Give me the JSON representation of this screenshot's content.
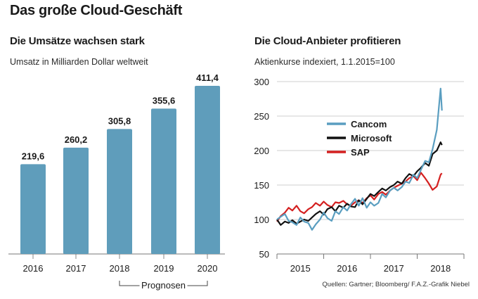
{
  "title": "Das große Cloud-Geschäft",
  "source": "Quellen: Gartner; Bloomberg/ F.A.Z.-Grafik Niebel",
  "chart_data": [
    {
      "type": "bar",
      "title": "Die Umsätze wachsen stark",
      "subtitle": "Umsatz in Milliarden Dollar weltweit",
      "categories": [
        "2016",
        "2017",
        "2018",
        "2019",
        "2020"
      ],
      "values": [
        219.6,
        260.2,
        305.8,
        355.6,
        411.4
      ],
      "value_labels": [
        "219,6",
        "260,2",
        "305,8",
        "355,6",
        "411,4"
      ],
      "forecast_label": "Prognosen",
      "forecast_categories": [
        "2018",
        "2019",
        "2020"
      ],
      "ylim": [
        0,
        411.4
      ],
      "bar_color": "#5f9dbb",
      "grid": false
    },
    {
      "type": "line",
      "title": "Die Cloud-Anbieter profitieren",
      "subtitle": "Aktienkurse indexiert, 1.1.2015=100",
      "x_ticks": [
        "2015",
        "2016",
        "2017",
        "2018"
      ],
      "xlim": [
        2014.5,
        2018.5
      ],
      "ylim": [
        50,
        300
      ],
      "y_ticks": [
        "300",
        "250",
        "200",
        "150",
        "100",
        "50"
      ],
      "y_tick_values": [
        300,
        250,
        200,
        150,
        100,
        50
      ],
      "grid": "horizontal",
      "legend_position": "top-left",
      "series": [
        {
          "name": "Cancom",
          "color": "#5a9ec0",
          "x": [
            2014.5,
            2014.58,
            2014.67,
            2014.75,
            2014.83,
            2014.92,
            2015.0,
            2015.08,
            2015.17,
            2015.25,
            2015.33,
            2015.42,
            2015.5,
            2015.58,
            2015.67,
            2015.75,
            2015.83,
            2015.92,
            2016.0,
            2016.08,
            2016.17,
            2016.25,
            2016.33,
            2016.42,
            2016.5,
            2016.58,
            2016.67,
            2016.75,
            2016.83,
            2016.92,
            2017.0,
            2017.08,
            2017.17,
            2017.25,
            2017.33,
            2017.42,
            2017.5,
            2017.58,
            2017.67,
            2017.75,
            2017.83,
            2017.92,
            2018.0,
            2018.03
          ],
          "values": [
            100,
            104,
            108,
            98,
            96,
            92,
            103,
            97,
            95,
            85,
            93,
            100,
            110,
            102,
            98,
            112,
            108,
            118,
            113,
            122,
            130,
            120,
            131,
            117,
            125,
            120,
            124,
            137,
            132,
            142,
            146,
            142,
            147,
            155,
            153,
            165,
            160,
            172,
            185,
            183,
            202,
            230,
            290,
            258
          ]
        },
        {
          "name": "Microsoft",
          "color": "#111111",
          "x": [
            2014.5,
            2014.58,
            2014.67,
            2014.75,
            2014.83,
            2014.92,
            2015.0,
            2015.08,
            2015.17,
            2015.25,
            2015.33,
            2015.42,
            2015.5,
            2015.58,
            2015.67,
            2015.75,
            2015.83,
            2015.92,
            2016.0,
            2016.08,
            2016.17,
            2016.25,
            2016.33,
            2016.42,
            2016.5,
            2016.58,
            2016.67,
            2016.75,
            2016.83,
            2016.92,
            2017.0,
            2017.08,
            2017.17,
            2017.25,
            2017.33,
            2017.42,
            2017.5,
            2017.58,
            2017.67,
            2017.75,
            2017.83,
            2017.92,
            2018.0,
            2018.03
          ],
          "values": [
            100,
            92,
            97,
            95,
            99,
            94,
            97,
            100,
            98,
            103,
            108,
            112,
            107,
            115,
            118,
            112,
            120,
            117,
            123,
            119,
            118,
            128,
            122,
            130,
            137,
            134,
            140,
            145,
            142,
            147,
            150,
            155,
            152,
            160,
            166,
            163,
            170,
            175,
            182,
            178,
            195,
            200,
            212,
            208
          ]
        },
        {
          "name": "SAP",
          "color": "#d42020",
          "x": [
            2014.5,
            2014.58,
            2014.67,
            2014.75,
            2014.83,
            2014.92,
            2015.0,
            2015.08,
            2015.17,
            2015.25,
            2015.33,
            2015.42,
            2015.5,
            2015.58,
            2015.67,
            2015.75,
            2015.83,
            2015.92,
            2016.0,
            2016.08,
            2016.17,
            2016.25,
            2016.33,
            2016.42,
            2016.5,
            2016.58,
            2016.67,
            2016.75,
            2016.83,
            2016.92,
            2017.0,
            2017.08,
            2017.17,
            2017.25,
            2017.33,
            2017.42,
            2017.5,
            2017.58,
            2017.67,
            2017.75,
            2017.83,
            2017.92,
            2018.0,
            2018.03
          ],
          "values": [
            97,
            105,
            110,
            117,
            113,
            120,
            112,
            109,
            115,
            118,
            124,
            120,
            126,
            121,
            118,
            125,
            124,
            127,
            122,
            120,
            125,
            128,
            124,
            131,
            135,
            129,
            137,
            140,
            136,
            142,
            146,
            149,
            152,
            155,
            160,
            163,
            157,
            168,
            160,
            152,
            143,
            148,
            165,
            167
          ]
        }
      ]
    }
  ]
}
